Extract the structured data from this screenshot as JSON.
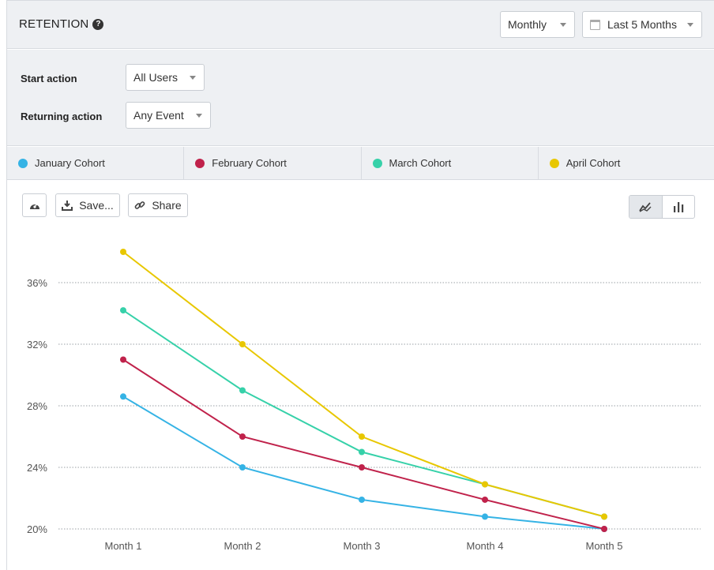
{
  "header": {
    "title": "RETENTION",
    "help_glyph": "?",
    "interval_dropdown": "Monthly",
    "range_dropdown": "Last 5 Months"
  },
  "filters": {
    "start_action_label": "Start action",
    "start_action_value": "All Users",
    "returning_action_label": "Returning action",
    "returning_action_value": "Any Event"
  },
  "toolbar": {
    "save_label": "Save...",
    "share_label": "Share"
  },
  "icons": [
    "help-icon",
    "calendar-icon",
    "dashboard-icon",
    "download-icon",
    "link-icon",
    "line-chart-icon",
    "bar-chart-icon"
  ],
  "chart_data": {
    "type": "line",
    "categories": [
      "Month 1",
      "Month 2",
      "Month 3",
      "Month 4",
      "Month 5"
    ],
    "yticks": [
      "20%",
      "24%",
      "28%",
      "32%",
      "36%"
    ],
    "ylim": [
      20,
      36
    ],
    "grid": true,
    "series": [
      {
        "name": "January Cohort",
        "color": "#35b3e5",
        "values": [
          28.6,
          24.0,
          21.9,
          20.8,
          20.0
        ]
      },
      {
        "name": "February Cohort",
        "color": "#c0224b",
        "values": [
          31.0,
          26.0,
          24.0,
          21.9,
          20.0
        ]
      },
      {
        "name": "March Cohort",
        "color": "#36d1a9",
        "values": [
          34.2,
          29.0,
          25.0,
          22.9,
          20.8
        ]
      },
      {
        "name": "April Cohort",
        "color": "#e8c700",
        "values": [
          38.0,
          32.0,
          26.0,
          22.9,
          20.8
        ]
      }
    ]
  }
}
